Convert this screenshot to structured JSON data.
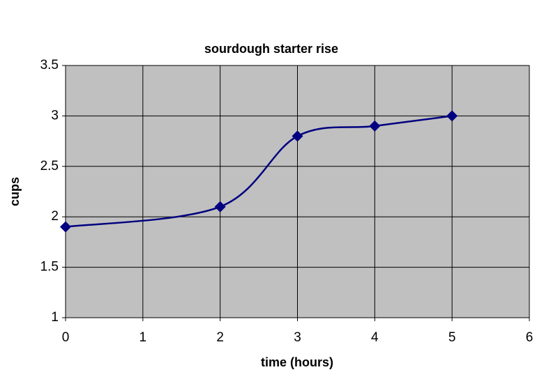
{
  "chart_data": {
    "type": "line",
    "title": "sourdough starter rise",
    "xlabel": "time (hours)",
    "ylabel": "cups",
    "x": [
      0,
      2,
      3,
      4,
      5
    ],
    "values": [
      1.9,
      2.1,
      2.8,
      2.9,
      3.0
    ],
    "color": "#000080",
    "smooth": true,
    "marker": "diamond",
    "xlim": [
      0,
      6
    ],
    "xticks": [
      0,
      1,
      2,
      3,
      4,
      5,
      6
    ],
    "ylim": [
      1,
      3.5
    ],
    "yticks": [
      1,
      1.5,
      2,
      2.5,
      3,
      3.5
    ],
    "grid": true,
    "plot_background": "#c0c0c0"
  }
}
